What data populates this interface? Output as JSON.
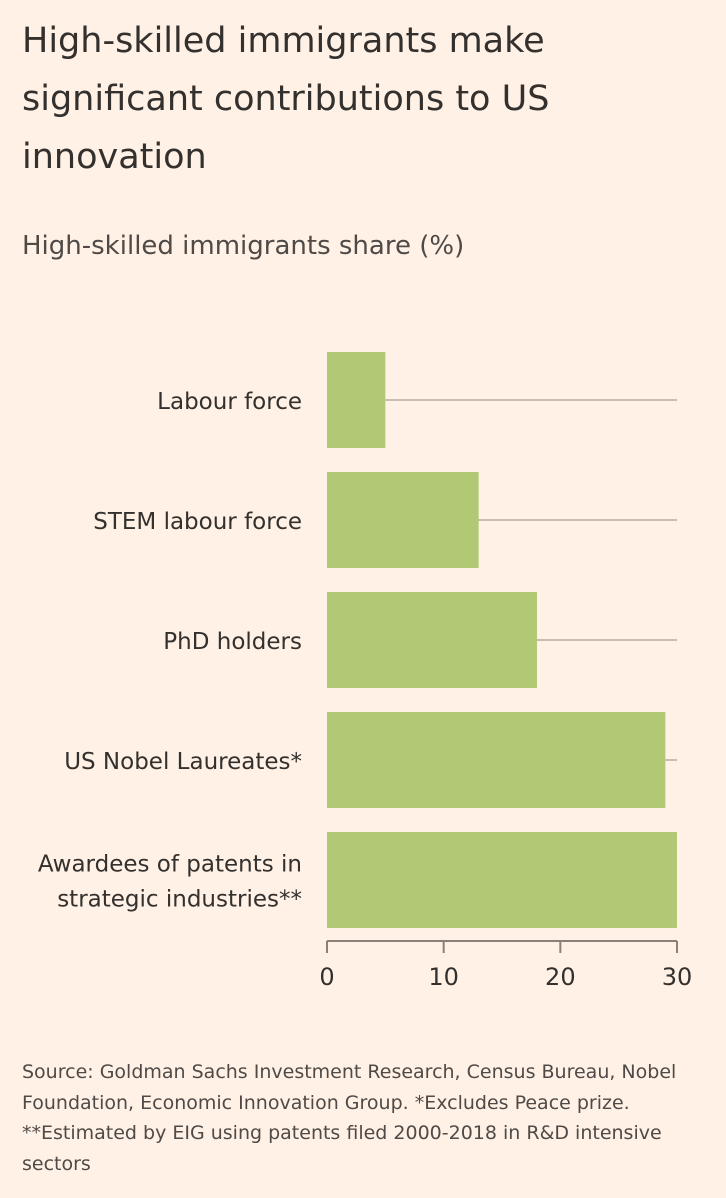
{
  "title": "High-skilled immigrants make significant contributions to US innovation",
  "subtitle": "High-skilled immigrants share (%)",
  "source": "Source: Goldman Sachs Investment Research, Census Bureau, Nobel Foundation, Economic Innovation Group. *Excludes Peace prize. **Estimated by EIG using patents filed 2000-2018 in R&D intensive sectors",
  "colors": {
    "background": "#fff1e5",
    "bar": "#b1c975",
    "gridline": "#c9beb5",
    "axis": "#8a807a"
  },
  "chart_data": {
    "type": "bar",
    "orientation": "horizontal",
    "categories": [
      [
        "Labour force"
      ],
      [
        "STEM labour force"
      ],
      [
        "PhD holders"
      ],
      [
        "US Nobel Laureates*"
      ],
      [
        "Awardees of patents in",
        "strategic industries**"
      ]
    ],
    "values": [
      5,
      13,
      18,
      29,
      30
    ],
    "xlim": [
      0,
      30
    ],
    "xticks": [
      "0",
      "10",
      "20",
      "30"
    ],
    "xtick_values": [
      0,
      10,
      20,
      30
    ],
    "xlabel": "",
    "ylabel": "",
    "grid": true
  }
}
